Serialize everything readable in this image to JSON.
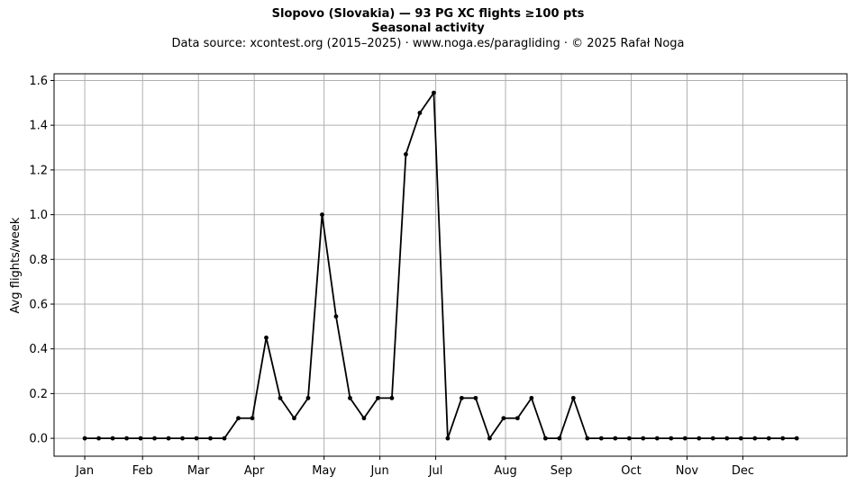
{
  "title": "Slopovo (Slovakia)  —  93 PG XC flights ≥100 pts",
  "subtitle": "Seasonal activity",
  "source_line": "Data source: xcontest.org (2015–2025)  ·  www.noga.es/paragliding  ·  © 2025 Rafał Noga",
  "chart_data": {
    "type": "line",
    "title": "Slopovo (Slovakia)  —  93 PG XC flights ≥100 pts",
    "subtitle": "Seasonal activity",
    "xlabel": "",
    "ylabel": "Avg flights/week",
    "x_ticks": [
      {
        "label": "Jan",
        "week": 1
      },
      {
        "label": "Feb",
        "week": 5.14
      },
      {
        "label": "Mar",
        "week": 9.14
      },
      {
        "label": "Apr",
        "week": 13.14
      },
      {
        "label": "May",
        "week": 18.14
      },
      {
        "label": "Jun",
        "week": 22.14
      },
      {
        "label": "Jul",
        "week": 26.14
      },
      {
        "label": "Aug",
        "week": 31.14
      },
      {
        "label": "Sep",
        "week": 35.14
      },
      {
        "label": "Oct",
        "week": 40.14
      },
      {
        "label": "Nov",
        "week": 44.14
      },
      {
        "label": "Dec",
        "week": 48.14
      }
    ],
    "y_ticks": [
      "0.0",
      "0.2",
      "0.4",
      "0.6",
      "0.8",
      "1.0",
      "1.2",
      "1.4",
      "1.6"
    ],
    "xlim": [
      -1.2,
      55.6
    ],
    "ylim": [
      -0.08,
      1.63
    ],
    "grid": true,
    "series": [
      {
        "color": "#000000",
        "x": [
          1,
          2,
          3,
          4,
          5,
          6,
          7,
          8,
          9,
          10,
          11,
          12,
          13,
          14,
          15,
          16,
          17,
          18,
          19,
          20,
          21,
          22,
          23,
          24,
          25,
          26,
          27,
          28,
          29,
          30,
          31,
          32,
          33,
          34,
          35,
          36,
          37,
          38,
          39,
          40,
          41,
          42,
          43,
          44,
          45,
          46,
          47,
          48,
          49,
          50,
          51,
          52
        ],
        "values": [
          0,
          0,
          0,
          0,
          0,
          0,
          0,
          0,
          0,
          0,
          0,
          0.09,
          0.09,
          0.45,
          0.18,
          0.09,
          0.18,
          1.0,
          0.545,
          0.18,
          0.09,
          0.18,
          0.18,
          1.27,
          1.455,
          1.545,
          0,
          0.18,
          0.18,
          0,
          0.09,
          0.09,
          0.18,
          0,
          0,
          0.18,
          0,
          0,
          0,
          0,
          0,
          0,
          0,
          0,
          0,
          0,
          0,
          0,
          0,
          0,
          0,
          0
        ]
      }
    ]
  }
}
